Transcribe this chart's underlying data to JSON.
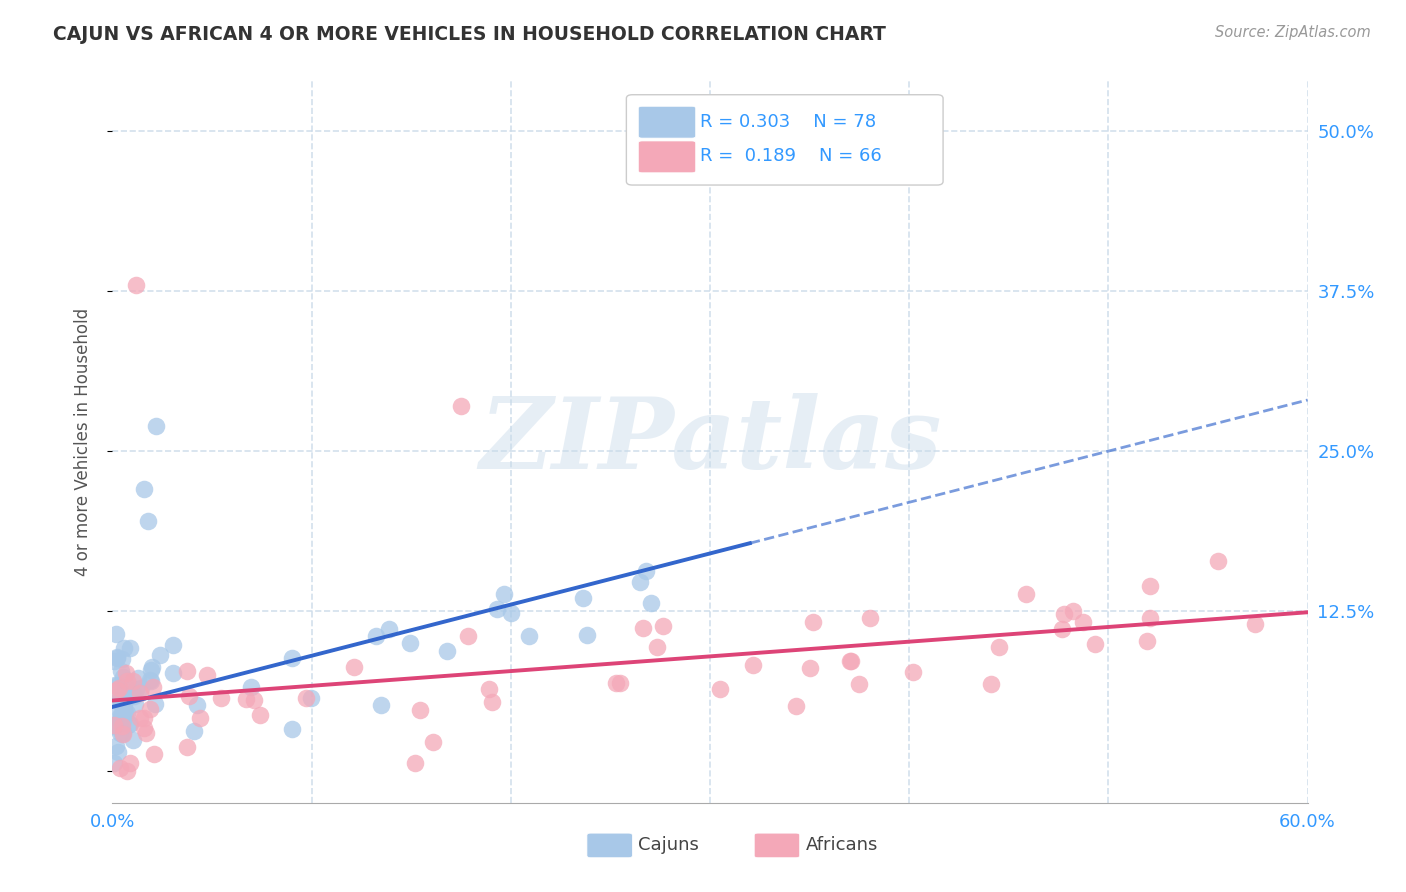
{
  "title": "CAJUN VS AFRICAN 4 OR MORE VEHICLES IN HOUSEHOLD CORRELATION CHART",
  "source_text": "Source: ZipAtlas.com",
  "ylabel": "4 or more Vehicles in Household",
  "xlim": [
    0.0,
    0.6
  ],
  "ylim": [
    -0.025,
    0.54
  ],
  "xticks": [
    0.0,
    0.1,
    0.2,
    0.3,
    0.4,
    0.5,
    0.6
  ],
  "yticks": [
    0.0,
    0.125,
    0.25,
    0.375,
    0.5
  ],
  "cajun_R": 0.303,
  "cajun_N": 78,
  "african_R": 0.189,
  "african_N": 66,
  "cajun_color": "#a8c8e8",
  "african_color": "#f4a8b8",
  "cajun_line_color": "#3366cc",
  "african_line_color": "#dd4477",
  "legend_text_color": "#3399ff",
  "background_color": "#ffffff",
  "grid_color": "#c8d8e8",
  "watermark_text": "ZIPatlas"
}
